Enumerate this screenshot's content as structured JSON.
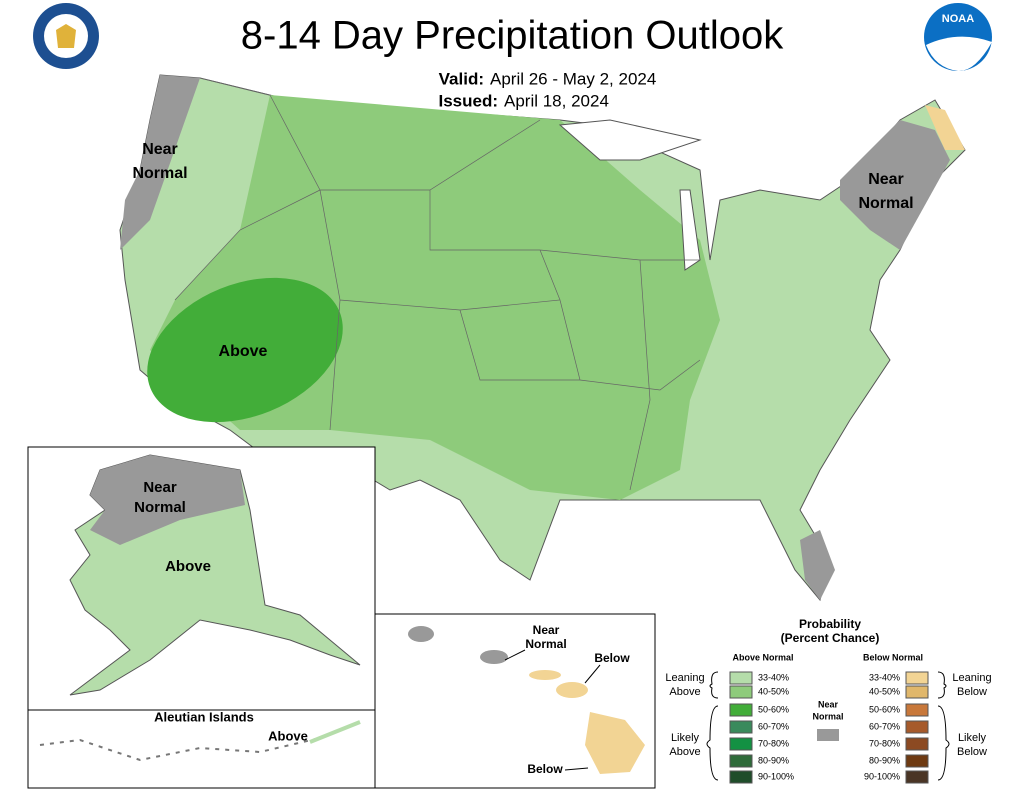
{
  "header": {
    "title": "8-14 Day Precipitation Outlook",
    "valid_label": "Valid:",
    "valid": "April 26 - May 2, 2024",
    "issued_label": "Issued:",
    "issued": "April 18, 2024",
    "logo": "NOAA"
  },
  "conus": {
    "northwest": [
      "Near",
      "Normal"
    ],
    "northeast": [
      "Near",
      "Normal"
    ],
    "southwest": "Above"
  },
  "alaska": {
    "north": [
      "Near",
      "Normal"
    ],
    "south": "Above"
  },
  "aleutians": {
    "title": "Aleutian Islands",
    "label": "Above"
  },
  "hawaii": {
    "oahu": [
      "Near",
      "Normal"
    ],
    "maui": "Below",
    "big_island": "Below"
  },
  "legend": {
    "title": [
      "Probability",
      "(Percent Chance)"
    ],
    "above_title": "Above Normal",
    "below_title": "Below Normal",
    "leaning_above": [
      "Leaning",
      "Above"
    ],
    "likely_above": [
      "Likely",
      "Above"
    ],
    "near_normal": [
      "Near",
      "Normal"
    ],
    "near_color": "#999999",
    "leaning_below": [
      "Leaning",
      "Below"
    ],
    "likely_below": [
      "Likely",
      "Below"
    ],
    "above": [
      {
        "label": "33-40%",
        "color": "#b5ddaa"
      },
      {
        "label": "40-50%",
        "color": "#8ecb7b"
      },
      {
        "label": "50-60%",
        "color": "#42ad39"
      },
      {
        "label": "60-70%",
        "color": "#3a8a5c"
      },
      {
        "label": "70-80%",
        "color": "#139143"
      },
      {
        "label": "80-90%",
        "color": "#2f6b3a"
      },
      {
        "label": "90-100%",
        "color": "#1f4d2a"
      }
    ],
    "below": [
      {
        "label": "33-40%",
        "color": "#f2d494"
      },
      {
        "label": "40-50%",
        "color": "#e0b76b"
      },
      {
        "label": "50-60%",
        "color": "#c8783a"
      },
      {
        "label": "60-70%",
        "color": "#a65a2b"
      },
      {
        "label": "70-80%",
        "color": "#8c4a22"
      },
      {
        "label": "80-90%",
        "color": "#6e3a12"
      },
      {
        "label": "90-100%",
        "color": "#4a3525"
      }
    ]
  }
}
